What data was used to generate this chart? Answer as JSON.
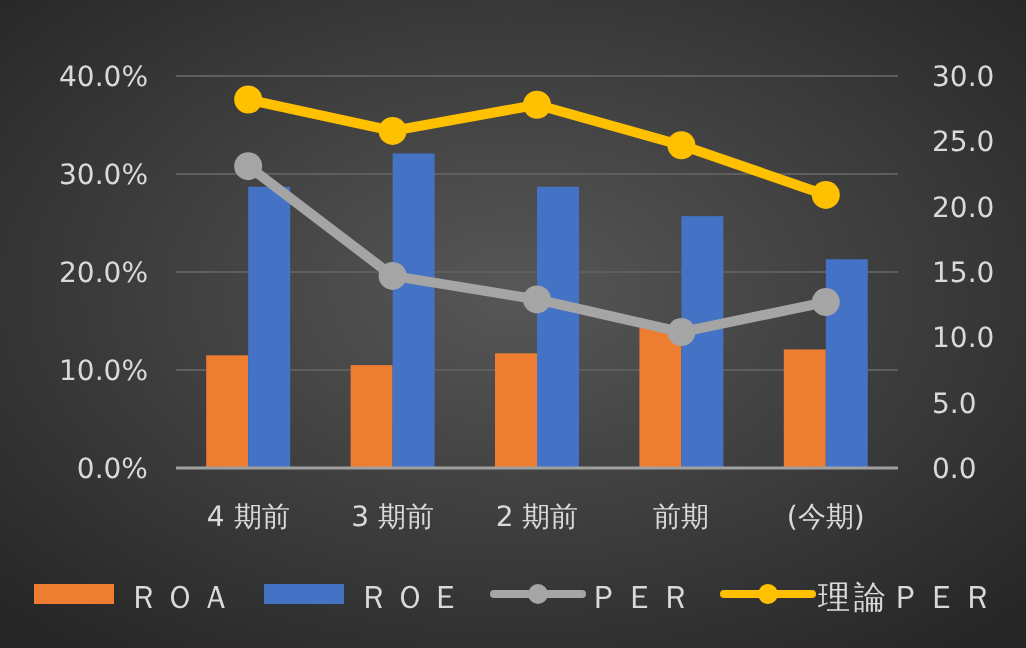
{
  "chart_data": {
    "type": "bar",
    "categories": [
      "4 期前",
      "3 期前",
      "2 期前",
      "前期",
      "(今期)"
    ],
    "series": [
      {
        "name": "ＲＯＡ",
        "color": "#ed7d31",
        "values": [
          11.5,
          10.5,
          11.7,
          14.3,
          12.1
        ]
      },
      {
        "name": "ＲＯＥ",
        "color": "#4472c4",
        "values": [
          28.7,
          32.1,
          28.7,
          25.7,
          21.3
        ]
      },
      {
        "name": "ＰＥＲ",
        "type": "line",
        "axis": "y2",
        "color": "#a5a5a5",
        "values": [
          23.1,
          14.7,
          12.9,
          10.4,
          12.7
        ]
      },
      {
        "name": "理論ＰＥＲ",
        "type": "line",
        "axis": "y2",
        "color": "#ffc000",
        "values": [
          28.2,
          25.8,
          27.8,
          24.7,
          20.9
        ]
      }
    ],
    "ylim": [
      0,
      40
    ],
    "yticks": [
      {
        "value": 0,
        "label": "0.0%"
      },
      {
        "value": 10,
        "label": "10.0%"
      },
      {
        "value": 20,
        "label": "20.0%"
      },
      {
        "value": 30,
        "label": "30.0%"
      },
      {
        "value": 40,
        "label": "40.0%"
      }
    ],
    "y2lim": [
      0,
      30
    ],
    "y2ticks": [
      {
        "value": 0,
        "label": "0.0"
      },
      {
        "value": 5,
        "label": "5.0"
      },
      {
        "value": 10,
        "label": "10.0"
      },
      {
        "value": 15,
        "label": "15.0"
      },
      {
        "value": 20,
        "label": "20.0"
      },
      {
        "value": 25,
        "label": "25.0"
      },
      {
        "value": 30,
        "label": "30.0"
      }
    ],
    "grid": "y",
    "legend": "bottom",
    "marker": "circle"
  }
}
